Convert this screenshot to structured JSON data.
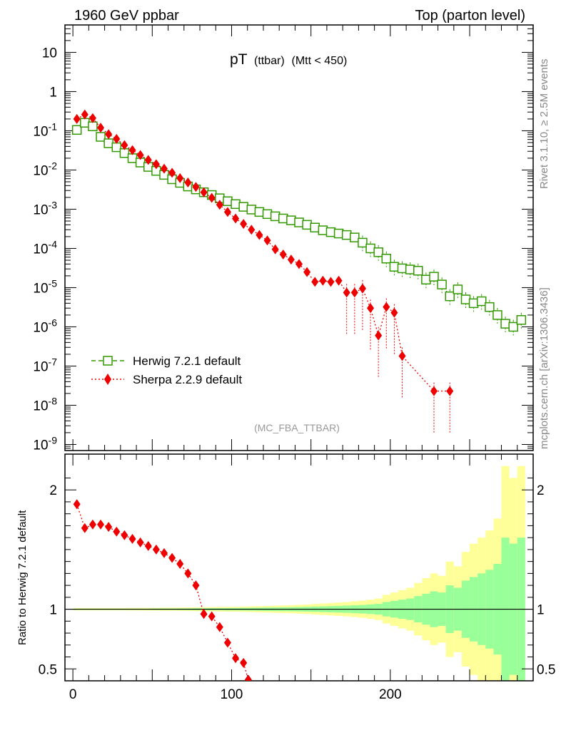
{
  "header": {
    "left": "1960 GeV ppbar",
    "right": "Top (parton level)"
  },
  "side_labels": {
    "top": "Rivet 3.1.10, ≥ 2.5M events",
    "bottom": "mcplots.cern.ch [arXiv:1306.3436]"
  },
  "chart_data": {
    "type": "scatter",
    "title_main": "pT",
    "title_sub1": "(ttbar)",
    "title_sub2": "(Mtt < 450)",
    "watermark": "(MC_FBA_TTBAR)",
    "main_yscale": "log",
    "main_ylim": [
      7e-10,
      50
    ],
    "xlim": [
      -5,
      290
    ],
    "x_ticks": [
      "0",
      "100",
      "200"
    ],
    "y_ticks": [
      "10",
      "1",
      "10^-1",
      "10^-2",
      "10^-3",
      "10^-4",
      "10^-5",
      "10^-6",
      "10^-7",
      "10^-8",
      "10^-9"
    ],
    "legend_position": "lower-left",
    "series": [
      {
        "name": "Herwig 7.2.1 default",
        "color": "#339900",
        "marker": "open-square",
        "line": "dashed",
        "x": [
          2.5,
          7.5,
          12.5,
          17.5,
          22.5,
          27.5,
          32.5,
          37.5,
          42.5,
          47.5,
          52.5,
          57.5,
          62.5,
          67.5,
          72.5,
          77.5,
          82.5,
          87.5,
          92.5,
          97.5,
          102.5,
          107.5,
          112.5,
          117.5,
          122.5,
          127.5,
          132.5,
          137.5,
          142.5,
          147.5,
          152.5,
          157.5,
          162.5,
          167.5,
          172.5,
          177.5,
          182.5,
          187.5,
          192.5,
          197.5,
          202.5,
          207.5,
          212.5,
          217.5,
          222.5,
          227.5,
          232.5,
          237.5,
          242.5,
          247.5,
          252.5,
          257.5,
          262.5,
          267.5,
          272.5,
          277.5,
          282.5
        ],
        "values": [
          0.105,
          0.16,
          0.13,
          0.07,
          0.048,
          0.038,
          0.027,
          0.02,
          0.0155,
          0.012,
          0.0095,
          0.0075,
          0.0058,
          0.0047,
          0.0038,
          0.0032,
          0.0027,
          0.0023,
          0.0019,
          0.0016,
          0.00135,
          0.00115,
          0.00098,
          0.00085,
          0.00075,
          0.00066,
          0.00058,
          0.00052,
          0.00046,
          0.0004,
          0.00034,
          0.00029,
          0.00026,
          0.00024,
          0.00022,
          0.00019,
          0.00014,
          0.0001,
          8e-05,
          5.5e-05,
          3.4e-05,
          3.1e-05,
          2.9e-05,
          2.7e-05,
          1.6e-05,
          1.9e-05,
          1.2e-05,
          6e-06,
          9e-06,
          5e-06,
          4e-06,
          4.5e-06,
          3.2e-06,
          2e-06,
          1.2e-06,
          1e-06,
          1.5e-06
        ]
      },
      {
        "name": "Sherpa 2.2.9 default",
        "color": "#ee0000",
        "marker": "filled-diamond",
        "line": "dotted",
        "x": [
          2.5,
          7.5,
          12.5,
          17.5,
          22.5,
          27.5,
          32.5,
          37.5,
          42.5,
          47.5,
          52.5,
          57.5,
          62.5,
          67.5,
          72.5,
          77.5,
          82.5,
          87.5,
          92.5,
          97.5,
          102.5,
          107.5,
          112.5,
          117.5,
          122.5,
          127.5,
          132.5,
          137.5,
          142.5,
          147.5,
          152.5,
          157.5,
          162.5,
          167.5,
          172.5,
          177.5,
          182.5,
          187.5,
          192.5,
          197.5,
          202.5,
          207.5,
          227.5,
          237.5
        ],
        "values": [
          0.2,
          0.26,
          0.21,
          0.12,
          0.082,
          0.062,
          0.043,
          0.032,
          0.024,
          0.018,
          0.014,
          0.0108,
          0.0085,
          0.0062,
          0.0048,
          0.0037,
          0.0027,
          0.00195,
          0.0013,
          0.00085,
          0.00058,
          0.00042,
          0.0003,
          0.00022,
          0.00016,
          9.5e-05,
          7e-05,
          5.2e-05,
          4e-05,
          2.5e-05,
          1.4e-05,
          1.5e-05,
          1.4e-05,
          1.5e-05,
          7.5e-06,
          7.5e-06,
          9.5e-06,
          3e-06,
          6e-07,
          3.2e-06,
          2.3e-06,
          1.8e-07,
          2.3e-08,
          2.3e-08
        ]
      }
    ],
    "ratio_panel": {
      "ylabel": "Ratio to Herwig 7.2.1 default",
      "ylim": [
        0.4,
        2.3
      ],
      "y_ticks": [
        "2",
        "1",
        "0.5"
      ],
      "reference": 1,
      "band_colors": {
        "inner": "#99ff99",
        "outer": "#ffff99"
      },
      "band_edges_x": [
        0,
        5,
        10,
        15,
        20,
        25,
        30,
        35,
        40,
        45,
        50,
        55,
        60,
        65,
        70,
        75,
        80,
        85,
        90,
        95,
        100,
        105,
        110,
        115,
        120,
        125,
        130,
        135,
        140,
        145,
        150,
        155,
        160,
        165,
        170,
        175,
        180,
        185,
        190,
        195,
        200,
        205,
        210,
        215,
        220,
        225,
        230,
        235,
        240,
        245,
        250,
        255,
        260,
        265,
        270,
        275,
        280,
        285
      ],
      "band_inner": [
        0.005,
        0.005,
        0.005,
        0.005,
        0.005,
        0.005,
        0.005,
        0.005,
        0.005,
        0.005,
        0.006,
        0.006,
        0.006,
        0.007,
        0.007,
        0.008,
        0.008,
        0.009,
        0.009,
        0.01,
        0.01,
        0.011,
        0.012,
        0.013,
        0.014,
        0.015,
        0.016,
        0.017,
        0.018,
        0.02,
        0.022,
        0.024,
        0.026,
        0.028,
        0.03,
        0.033,
        0.036,
        0.04,
        0.045,
        0.06,
        0.07,
        0.08,
        0.09,
        0.11,
        0.13,
        0.15,
        0.14,
        0.2,
        0.18,
        0.24,
        0.27,
        0.3,
        0.33,
        0.38,
        0.6,
        0.55,
        0.6
      ],
      "band_outer": [
        0.01,
        0.01,
        0.01,
        0.01,
        0.01,
        0.01,
        0.01,
        0.011,
        0.011,
        0.012,
        0.012,
        0.013,
        0.013,
        0.014,
        0.015,
        0.016,
        0.017,
        0.018,
        0.019,
        0.02,
        0.021,
        0.022,
        0.024,
        0.026,
        0.028,
        0.03,
        0.032,
        0.034,
        0.037,
        0.04,
        0.044,
        0.048,
        0.052,
        0.056,
        0.06,
        0.066,
        0.072,
        0.08,
        0.09,
        0.12,
        0.14,
        0.16,
        0.18,
        0.22,
        0.26,
        0.3,
        0.28,
        0.4,
        0.36,
        0.48,
        0.55,
        0.6,
        0.66,
        0.76,
        1.2,
        1.1,
        1.2
      ],
      "sherpa_x": [
        2.5,
        7.5,
        12.5,
        17.5,
        22.5,
        27.5,
        32.5,
        37.5,
        42.5,
        47.5,
        52.5,
        57.5,
        62.5,
        67.5,
        72.5,
        77.5,
        82.5,
        87.5,
        92.5,
        97.5,
        102.5,
        107.5,
        110.5
      ],
      "sherpa_ratio": [
        1.88,
        1.68,
        1.71,
        1.71,
        1.69,
        1.65,
        1.62,
        1.59,
        1.56,
        1.53,
        1.5,
        1.47,
        1.43,
        1.38,
        1.3,
        1.2,
        0.96,
        0.94,
        0.85,
        0.72,
        0.59,
        0.55,
        0.41
      ]
    }
  }
}
